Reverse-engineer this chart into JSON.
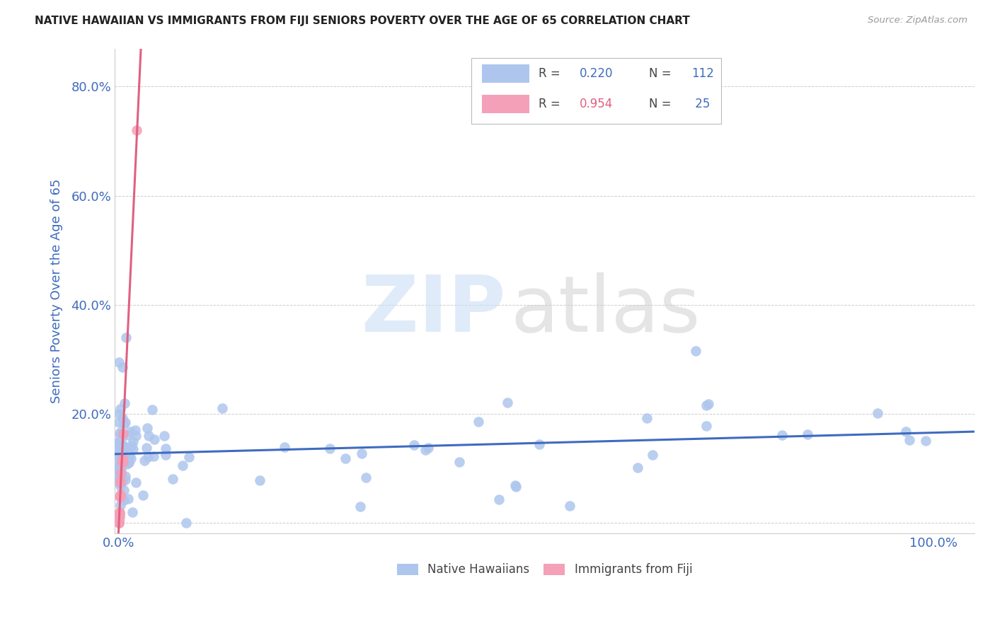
{
  "title": "NATIVE HAWAIIAN VS IMMIGRANTS FROM FIJI SENIORS POVERTY OVER THE AGE OF 65 CORRELATION CHART",
  "source": "Source: ZipAtlas.com",
  "ylabel": "Seniors Poverty Over the Age of 65",
  "xlim": [
    -0.005,
    1.05
  ],
  "ylim": [
    -0.02,
    0.87
  ],
  "xticks": [
    0.0,
    0.25,
    0.5,
    0.75,
    1.0
  ],
  "xtick_labels": [
    "0.0%",
    "",
    "",
    "",
    "100.0%"
  ],
  "yticks": [
    0.0,
    0.2,
    0.4,
    0.6,
    0.8
  ],
  "ytick_labels": [
    "",
    "20.0%",
    "40.0%",
    "60.0%",
    "80.0%"
  ],
  "group1_label": "Native Hawaiians",
  "group1_color": "#aec6ed",
  "group1_R": 0.22,
  "group1_N": 112,
  "group2_label": "Immigrants from Fiji",
  "group2_color": "#f4a0b8",
  "group2_R": 0.954,
  "group2_N": 25,
  "line1_color": "#3f6bbf",
  "line2_color": "#e06080",
  "background_color": "#ffffff",
  "grid_color": "#cccccc",
  "title_color": "#222222",
  "axis_label_color": "#3f6bbf",
  "tick_label_color": "#3f6bbf"
}
